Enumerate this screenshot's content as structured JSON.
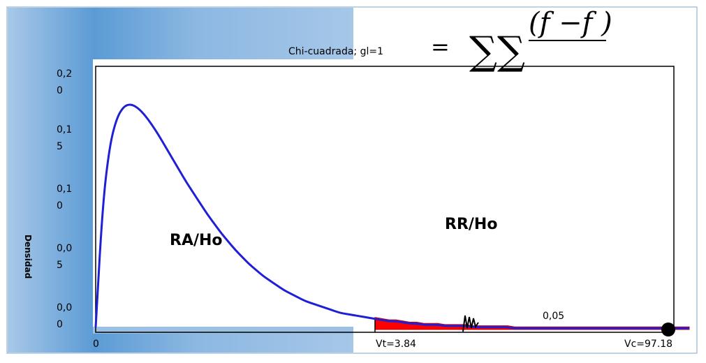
{
  "chart_data": {
    "type": "area",
    "title": "Chi-cuadrada; gl=1",
    "ylabel": "Densidad",
    "ylabel_visible": "Densidad",
    "formula": {
      "eq": "=",
      "sigma": "∑∑",
      "numerator": "(f −f )"
    },
    "y_ticks": [
      {
        "l1": "0,2",
        "l2": "0",
        "value": 0.2
      },
      {
        "l1": "0,1",
        "l2": "5",
        "value": 0.15
      },
      {
        "l1": "0,1",
        "l2": "0",
        "value": 0.1
      },
      {
        "l1": "0,0",
        "l2": "5",
        "value": 0.05
      },
      {
        "l1": "0,0",
        "l2": "0",
        "value": 0.0
      }
    ],
    "x_tick": "0",
    "ylim": [
      0,
      0.2
    ],
    "regions": {
      "acceptance": "RA/Ho",
      "rejection": "RR/Ho",
      "alpha": "0,05"
    },
    "critical": {
      "table_label": "Vt=3.84",
      "calc_label": "Vc=97.18"
    },
    "curve": {
      "x": [
        0,
        0.1,
        0.2,
        0.3,
        0.4,
        0.5,
        0.6,
        0.7,
        0.8,
        0.9,
        1.0,
        1.1,
        1.2,
        1.3,
        1.4,
        1.5,
        1.6,
        1.7,
        1.8,
        1.9,
        2.0,
        2.1,
        2.2,
        2.3,
        2.4,
        2.5,
        2.6,
        2.7,
        2.8,
        2.9,
        3.0,
        3.1,
        3.2,
        3.3,
        3.4,
        3.5,
        3.6,
        3.7,
        3.8,
        3.9,
        4.0,
        4.1,
        4.2,
        4.3,
        4.4,
        4.5,
        4.6,
        4.7,
        4.8,
        4.9,
        5.0,
        5.1,
        5.2,
        5.3,
        5.4,
        5.5,
        5.6,
        5.7,
        5.8,
        5.9,
        6.0,
        6.1,
        6.2,
        6.3,
        6.4,
        6.5,
        6.6,
        6.7,
        6.8,
        6.9,
        7.0,
        7.1,
        7.2,
        7.3,
        7.4,
        7.5,
        7.6,
        7.7,
        7.8,
        7.9,
        8.0,
        8.1,
        8.2,
        8.3,
        8.4,
        8.5
      ],
      "y": [
        0.002,
        0.105,
        0.155,
        0.178,
        0.188,
        0.19,
        0.187,
        0.181,
        0.173,
        0.164,
        0.154,
        0.144,
        0.134,
        0.124,
        0.115,
        0.106,
        0.097,
        0.089,
        0.081,
        0.074,
        0.067,
        0.061,
        0.055,
        0.05,
        0.045,
        0.041,
        0.037,
        0.033,
        0.03,
        0.027,
        0.024,
        0.022,
        0.02,
        0.018,
        0.016,
        0.014,
        0.013,
        0.012,
        0.011,
        0.01,
        0.009,
        0.008,
        0.007,
        0.007,
        0.006,
        0.005,
        0.005,
        0.004,
        0.004,
        0.004,
        0.003,
        0.003,
        0.003,
        0.003,
        0.002,
        0.002,
        0.002,
        0.002,
        0.002,
        0.002,
        0.001,
        0.001,
        0.001,
        0.001,
        0.001,
        0.001,
        0.001,
        0.001,
        0.001,
        0.001,
        0.001,
        0.001,
        0.001,
        0.001,
        0.001,
        0.001,
        0.001,
        0.001,
        0.001,
        0.001,
        0.001,
        0.001,
        0.001,
        0.001,
        0.001,
        0.001
      ]
    },
    "rejection_start_x": 4.0,
    "calc_point_x": 8.2,
    "colors": {
      "curve": "#1f1fd6",
      "reject_fill": "#ff0000",
      "panel": "#5b9bd5",
      "plot_border": "#000000"
    }
  }
}
